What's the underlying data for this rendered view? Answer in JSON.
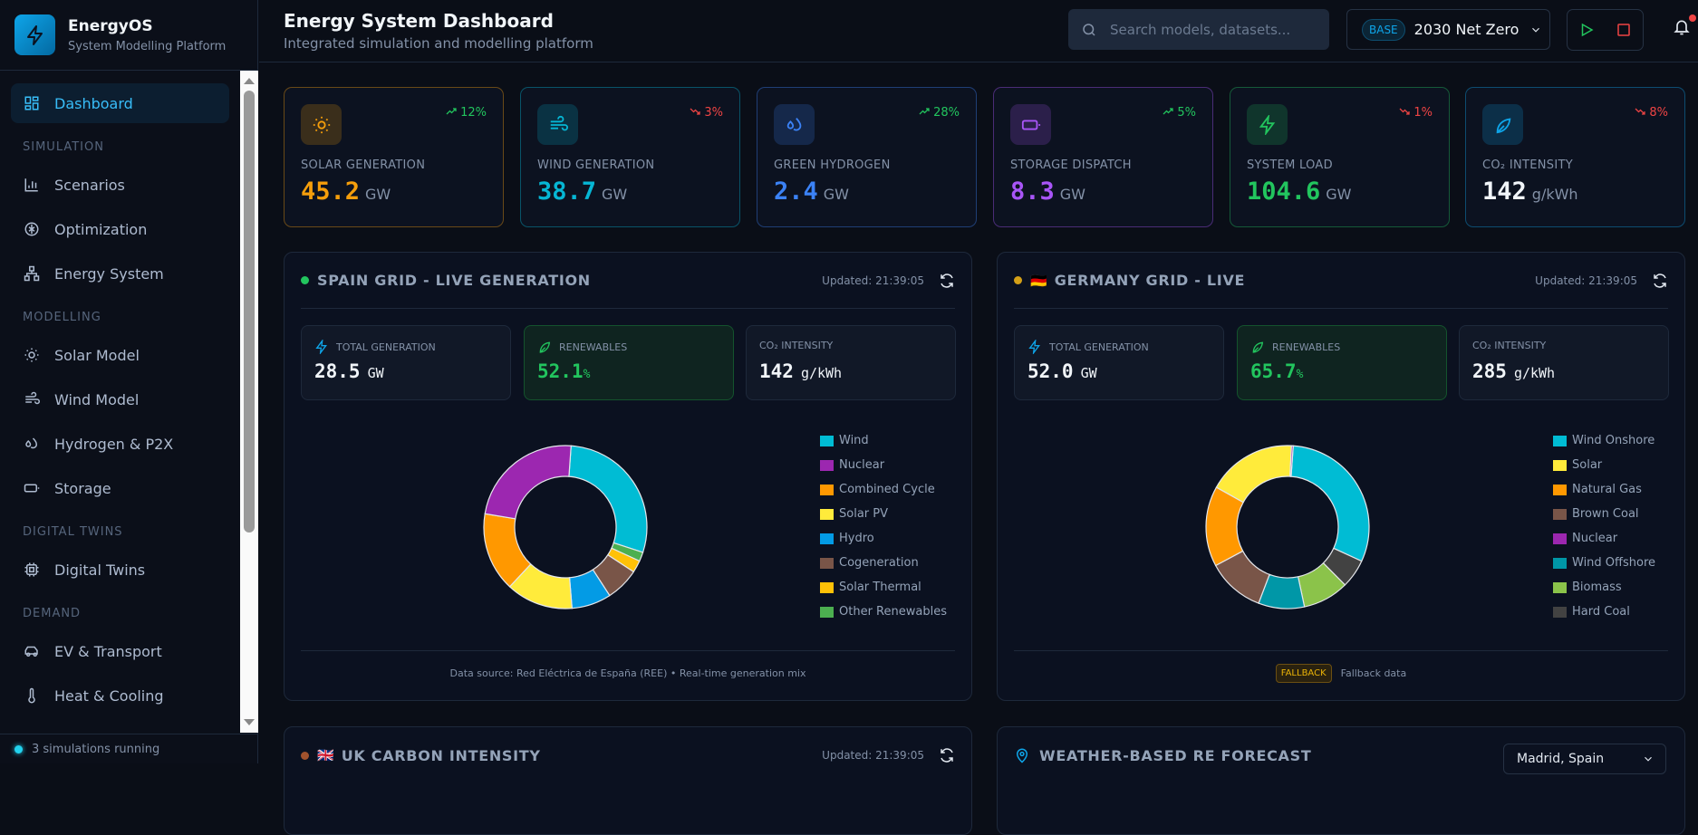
{
  "brand": {
    "name": "EnergyOS",
    "subtitle": "System Modelling Platform"
  },
  "sidebar": {
    "active": "Dashboard",
    "dashboard": "Dashboard",
    "sections": [
      {
        "title": "SIMULATION",
        "items": [
          "Scenarios",
          "Optimization",
          "Energy System"
        ]
      },
      {
        "title": "MODELLING",
        "items": [
          "Solar Model",
          "Wind Model",
          "Hydrogen & P2X",
          "Storage"
        ]
      },
      {
        "title": "DIGITAL TWINS",
        "items": [
          "Digital Twins"
        ]
      },
      {
        "title": "DEMAND",
        "items": [
          "EV & Transport",
          "Heat & Cooling"
        ]
      }
    ],
    "status": "3 simulations running"
  },
  "header": {
    "title": "Energy System Dashboard",
    "subtitle": "Integrated simulation and modelling platform",
    "search_placeholder": "Search models, datasets...",
    "scenario_badge": "BASE",
    "scenario_name": "2030 Net Zero"
  },
  "kpis": [
    {
      "label": "SOLAR GENERATION",
      "value": "45.2",
      "unit": "GW",
      "trend": "12%",
      "direction": "up",
      "color": "#f59e0b",
      "icon": "sun-icon"
    },
    {
      "label": "WIND GENERATION",
      "value": "38.7",
      "unit": "GW",
      "trend": "3%",
      "direction": "down",
      "color": "#06b6d4",
      "icon": "wind-icon"
    },
    {
      "label": "GREEN HYDROGEN",
      "value": "2.4",
      "unit": "GW",
      "trend": "28%",
      "direction": "up",
      "color": "#3b82f6",
      "icon": "droplets-icon"
    },
    {
      "label": "STORAGE DISPATCH",
      "value": "8.3",
      "unit": "GW",
      "trend": "5%",
      "direction": "up",
      "color": "#a855f7",
      "icon": "battery-icon"
    },
    {
      "label": "SYSTEM LOAD",
      "value": "104.6",
      "unit": "GW",
      "trend": "1%",
      "direction": "down",
      "color": "#22c55e",
      "icon": "zap-icon"
    },
    {
      "label": "CO₂ INTENSITY",
      "value": "142",
      "unit": "g/kWh",
      "trend": "8%",
      "direction": "down",
      "color": "#0ea5e9",
      "icon": "leaf-icon"
    }
  ],
  "spain": {
    "title": "SPAIN GRID - LIVE GENERATION",
    "updated": "Updated: 21:39:05",
    "total_label": "TOTAL GENERATION",
    "total_value": "28.5",
    "total_unit": "GW",
    "renew_label": "RENEWABLES",
    "renew_value": "52.1",
    "renew_unit": "%",
    "co2_label": "CO₂ INTENSITY",
    "co2_value": "142",
    "co2_unit": "g/kWh",
    "footer": "Data source: Red Eléctrica de España (REE) • Real-time generation mix"
  },
  "germany": {
    "title": "GERMANY GRID - LIVE",
    "updated": "Updated: 21:39:05",
    "total_label": "TOTAL GENERATION",
    "total_value": "52.0",
    "total_unit": "GW",
    "renew_label": "RENEWABLES",
    "renew_value": "65.7",
    "renew_unit": "%",
    "co2_label": "CO₂ INTENSITY",
    "co2_value": "285",
    "co2_unit": "g/kWh",
    "fallback_badge": "FALLBACK",
    "footer": "Fallback data"
  },
  "uk": {
    "title": "UK CARBON INTENSITY",
    "updated": "Updated: 21:39:05"
  },
  "weather": {
    "title": "WEATHER-BASED RE FORECAST",
    "location": "Madrid, Spain"
  },
  "chart_data": [
    {
      "type": "pie",
      "title": "Spain generation mix",
      "series": [
        {
          "name": "Wind",
          "value": 24,
          "color": "#00bcd4"
        },
        {
          "name": "Other Renewables",
          "value": 1.5,
          "color": "#4caf50"
        },
        {
          "name": "Solar Thermal",
          "value": 2,
          "color": "#ffc107"
        },
        {
          "name": "Cogeneration",
          "value": 5.5,
          "color": "#795548"
        },
        {
          "name": "Hydro",
          "value": 6.5,
          "color": "#039be5"
        },
        {
          "name": "Solar PV",
          "value": 11,
          "color": "#ffeb3b"
        },
        {
          "name": "Combined Cycle",
          "value": 13,
          "color": "#ff9800"
        },
        {
          "name": "Nuclear",
          "value": 19.5,
          "color": "#9c27b0"
        }
      ],
      "legend": [
        "Wind",
        "Nuclear",
        "Combined Cycle",
        "Solar PV",
        "Hydro",
        "Cogeneration",
        "Solar Thermal",
        "Other Renewables"
      ],
      "legend_position": "right"
    },
    {
      "type": "pie",
      "title": "Germany generation mix",
      "series": [
        {
          "name": "Wind Onshore",
          "value": 27,
          "color": "#00bcd4"
        },
        {
          "name": "Hard Coal",
          "value": 5,
          "color": "#424242"
        },
        {
          "name": "Biomass",
          "value": 8,
          "color": "#8bc34a"
        },
        {
          "name": "Wind Offshore",
          "value": 8,
          "color": "#0097a7"
        },
        {
          "name": "Brown Coal",
          "value": 10,
          "color": "#795548"
        },
        {
          "name": "Natural Gas",
          "value": 14,
          "color": "#ff9800"
        },
        {
          "name": "Solar",
          "value": 15.5,
          "color": "#ffeb3b"
        },
        {
          "name": "Nuclear",
          "value": 0.3,
          "color": "#9c27b0"
        }
      ],
      "legend": [
        "Wind Onshore",
        "Solar",
        "Natural Gas",
        "Brown Coal",
        "Nuclear",
        "Wind Offshore",
        "Biomass",
        "Hard Coal"
      ],
      "legend_position": "right"
    }
  ]
}
